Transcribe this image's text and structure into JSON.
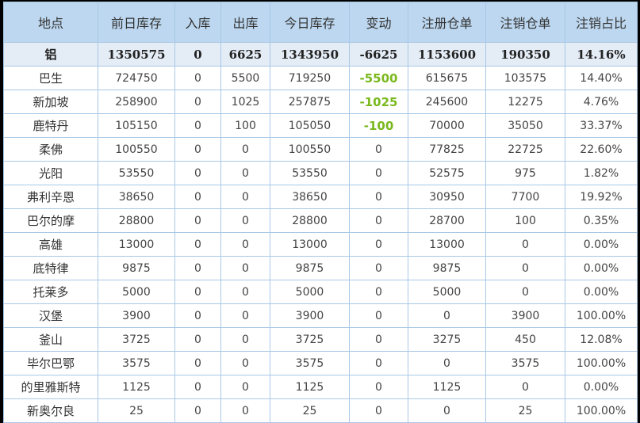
{
  "headers": [
    "地点",
    "前日库存",
    "入库",
    "出库",
    "今日库存",
    "变动",
    "注册仓单",
    "注销仓单",
    "注销占比"
  ],
  "colors": {
    "header_bg": "#bcd7ef",
    "total_bg": "#e4ecf6",
    "negative_change": "#7ab81e",
    "border": "#a9c8e6"
  },
  "rows": [
    [
      "铝",
      "1350575",
      "0",
      "6625",
      "1343950",
      "-6625",
      "1153600",
      "190350",
      "14.16%"
    ],
    [
      "巴生",
      "724750",
      "0",
      "5500",
      "719250",
      "-5500",
      "615675",
      "103575",
      "14.40%"
    ],
    [
      "新加坡",
      "258900",
      "0",
      "1025",
      "257875",
      "-1025",
      "245600",
      "12275",
      "4.76%"
    ],
    [
      "鹿特丹",
      "105150",
      "0",
      "100",
      "105050",
      "-100",
      "70000",
      "35050",
      "33.37%"
    ],
    [
      "柔佛",
      "100550",
      "0",
      "0",
      "100550",
      "0",
      "77825",
      "22725",
      "22.60%"
    ],
    [
      "光阳",
      "53550",
      "0",
      "0",
      "53550",
      "0",
      "52575",
      "975",
      "1.82%"
    ],
    [
      "弗利辛恩",
      "38650",
      "0",
      "0",
      "38650",
      "0",
      "30950",
      "7700",
      "19.92%"
    ],
    [
      "巴尔的摩",
      "28800",
      "0",
      "0",
      "28800",
      "0",
      "28700",
      "100",
      "0.35%"
    ],
    [
      "高雄",
      "13000",
      "0",
      "0",
      "13000",
      "0",
      "13000",
      "0",
      "0.00%"
    ],
    [
      "底特律",
      "9875",
      "0",
      "0",
      "9875",
      "0",
      "9875",
      "0",
      "0.00%"
    ],
    [
      "托莱多",
      "5000",
      "0",
      "0",
      "5000",
      "0",
      "5000",
      "0",
      "0.00%"
    ],
    [
      "汉堡",
      "3900",
      "0",
      "0",
      "3900",
      "0",
      "0",
      "3900",
      "100.00%"
    ],
    [
      "釜山",
      "3725",
      "0",
      "0",
      "3725",
      "0",
      "3275",
      "450",
      "12.08%"
    ],
    [
      "毕尔巴鄂",
      "3575",
      "0",
      "0",
      "3575",
      "0",
      "0",
      "3575",
      "100.00%"
    ],
    [
      "的里雅斯特",
      "1125",
      "0",
      "0",
      "1125",
      "0",
      "1125",
      "0",
      "0.00%"
    ],
    [
      "新奥尔良",
      "25",
      "0",
      "0",
      "25",
      "0",
      "0",
      "25",
      "100.00%"
    ]
  ]
}
